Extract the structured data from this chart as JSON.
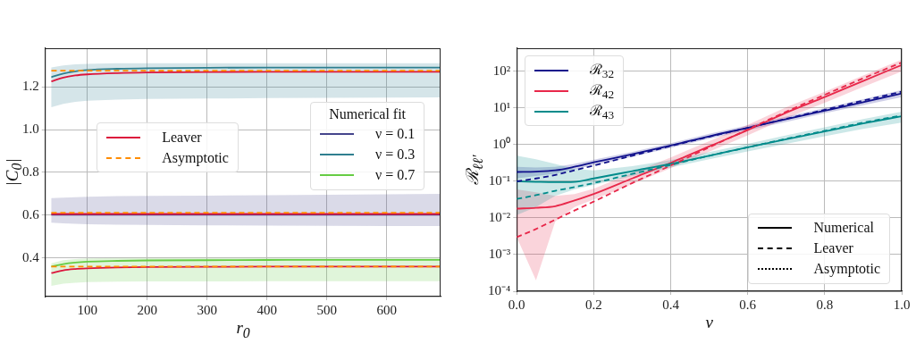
{
  "chart_data": [
    {
      "type": "line",
      "xlabel": "r$_{0}$",
      "ylabel": "|C$_{0}$|",
      "legend_title": "Numerical fit",
      "legend": "right",
      "grid": true,
      "x": [
        40,
        60,
        80,
        100,
        150,
        200,
        300,
        400,
        500,
        600,
        690
      ],
      "xlim": [
        30,
        690
      ],
      "xticks": [
        100,
        200,
        300,
        400,
        500,
        600
      ],
      "ylim": [
        0.22,
        1.38
      ],
      "yticks": [
        0.4,
        0.6,
        0.8,
        {
          "value": 1,
          "label": "1.0"
        },
        1.2
      ],
      "series": [
        {
          "name": "ν = 0.1",
          "color": "#45458c",
          "line_style": "solid",
          "values": [
            0.602,
            0.602,
            0.602,
            0.602,
            0.602,
            0.602,
            0.602,
            0.602,
            0.602,
            0.602,
            0.602
          ],
          "lower": [
            0.565,
            0.562,
            0.56,
            0.558,
            0.556,
            0.555,
            0.553,
            0.552,
            0.551,
            0.55,
            0.55
          ],
          "upper": [
            0.68,
            0.682,
            0.684,
            0.686,
            0.689,
            0.69,
            0.692,
            0.694,
            0.696,
            0.698,
            0.7
          ]
        },
        {
          "name": "ν = 0.3",
          "color": "#2f7f8f",
          "line_style": "solid",
          "values": [
            1.245,
            1.262,
            1.272,
            1.278,
            1.284,
            1.287,
            1.289,
            1.29,
            1.29,
            1.29,
            1.29
          ],
          "lower": [
            1.105,
            1.12,
            1.13,
            1.135,
            1.14,
            1.143,
            1.145,
            1.147,
            1.148,
            1.149,
            1.15
          ],
          "upper": [
            1.29,
            1.3,
            1.305,
            1.307,
            1.31,
            1.31,
            1.31,
            1.31,
            1.31,
            1.31,
            1.31
          ]
        },
        {
          "name": "ν = 0.7",
          "color": "#66cc44",
          "line_style": "solid",
          "values": [
            0.36,
            0.372,
            0.379,
            0.383,
            0.387,
            0.389,
            0.39,
            0.391,
            0.392,
            0.392,
            0.392
          ],
          "lower": [
            0.27,
            0.28,
            0.285,
            0.288,
            0.29,
            0.291,
            0.291,
            0.292,
            0.292,
            0.292,
            0.292
          ],
          "upper": [
            0.375,
            0.39,
            0.395,
            0.398,
            0.4,
            0.4,
            0.4,
            0.4,
            0.4,
            0.4,
            0.4
          ]
        },
        {
          "name": "Leaver",
          "color": "#dc143c",
          "line_style": "solid",
          "values": [
            1.225,
            1.243,
            1.253,
            1.258,
            1.264,
            1.267,
            1.269,
            1.27,
            1.27,
            1.27,
            1.27
          ]
        },
        {
          "color": "#dc143c",
          "line_style": "solid",
          "values": [
            0.606,
            0.606,
            0.606,
            0.606,
            0.606,
            0.606,
            0.606,
            0.606,
            0.606,
            0.606,
            0.606
          ]
        },
        {
          "color": "#dc143c",
          "line_style": "solid",
          "values": [
            0.33,
            0.343,
            0.349,
            0.352,
            0.356,
            0.358,
            0.359,
            0.36,
            0.36,
            0.36,
            0.36
          ]
        },
        {
          "name": "Asymptotic",
          "color": "#ff8c00",
          "line_style": "dashed",
          "values": [
            1.275,
            1.275,
            1.275,
            1.275,
            1.275,
            1.275,
            1.275,
            1.275,
            1.275,
            1.275,
            1.275
          ]
        },
        {
          "color": "#ff8c00",
          "line_style": "dashed",
          "values": [
            0.612,
            0.612,
            0.612,
            0.612,
            0.612,
            0.612,
            0.612,
            0.612,
            0.612,
            0.612,
            0.612
          ]
        },
        {
          "color": "#ff8c00",
          "line_style": "dashed",
          "values": [
            0.36,
            0.36,
            0.36,
            0.36,
            0.36,
            0.36,
            0.36,
            0.36,
            0.36,
            0.36,
            0.36
          ]
        }
      ]
    },
    {
      "type": "line",
      "xlabel": "ν",
      "ylabel": "ℛ$_{ℓℓ′}$",
      "legend": "top left",
      "grid": true,
      "log": "y",
      "x": [
        0,
        0.05,
        0.1,
        0.15,
        0.2,
        0.3,
        0.4,
        0.5,
        0.6,
        0.7,
        0.8,
        0.9,
        1.0
      ],
      "xlim": [
        0,
        1
      ],
      "xticks": [
        {
          "value": 0,
          "label": "0.0"
        },
        0.2,
        0.4,
        0.6,
        0.8,
        {
          "value": 1,
          "label": "1.0"
        }
      ],
      "ylim": [
        0.0001,
        430
      ],
      "yticks": [
        {
          "value": 0.0001,
          "label": "10⁻⁴"
        },
        {
          "value": 0.001,
          "label": "10⁻³"
        },
        {
          "value": 0.01,
          "label": "10⁻²"
        },
        {
          "value": 0.1,
          "label": "10⁻¹"
        },
        {
          "value": 1,
          "label": "10⁰"
        },
        {
          "value": 10,
          "label": "10¹"
        },
        {
          "value": 100,
          "label": "10²"
        }
      ],
      "annotations": [
        "Numerical",
        "Leaver",
        "Asymptotic"
      ],
      "series": [
        {
          "name": "ℛ$_{32}$",
          "color": "#10108c",
          "line_style": "solid",
          "values": [
            0.18,
            0.185,
            0.2,
            0.25,
            0.33,
            0.55,
            0.95,
            1.7,
            2.9,
            5,
            8.5,
            14.5,
            25
          ],
          "lower": [
            0.12,
            0.14,
            0.16,
            0.21,
            0.28,
            0.47,
            0.82,
            1.45,
            2.5,
            4.2,
            7.2,
            12,
            20
          ],
          "upper": [
            0.25,
            0.24,
            0.25,
            0.3,
            0.39,
            0.64,
            1.1,
            2,
            3.4,
            5.9,
            10,
            17.5,
            31
          ]
        },
        {
          "name": "ℛ$_{42}$",
          "color": "#e8284a",
          "line_style": "solid",
          "values": [
            0.018,
            0.019,
            0.021,
            0.03,
            0.045,
            0.12,
            0.32,
            0.9,
            2.5,
            7.5,
            20,
            55,
            150
          ],
          "lower": [
            0.003,
            0.0002,
            0.008,
            0.02,
            0.032,
            0.085,
            0.23,
            0.65,
            1.8,
            5.3,
            14,
            38,
            100
          ],
          "upper": [
            0.06,
            0.05,
            0.04,
            0.045,
            0.063,
            0.17,
            0.45,
            1.25,
            3.5,
            10.5,
            28,
            78,
            210
          ]
        },
        {
          "name": "ℛ$_{43}$",
          "color": "#008b8b",
          "line_style": "solid",
          "values": [
            0.1,
            0.097,
            0.095,
            0.097,
            0.12,
            0.19,
            0.3,
            0.5,
            0.85,
            1.4,
            2.3,
            3.8,
            6
          ],
          "lower": [
            0.012,
            0.02,
            0.04,
            0.06,
            0.08,
            0.14,
            0.24,
            0.4,
            0.66,
            1.05,
            1.7,
            2.7,
            4
          ],
          "upper": [
            0.5,
            0.4,
            0.3,
            0.22,
            0.2,
            0.26,
            0.38,
            0.63,
            1.05,
            1.8,
            3,
            5,
            8
          ]
        },
        {
          "color": "#10108c",
          "line_style": "dashed",
          "values": [
            0.1,
            0.12,
            0.15,
            0.2,
            0.27,
            0.5,
            0.92,
            1.65,
            2.9,
            5.1,
            9,
            16,
            28
          ]
        },
        {
          "color": "#e8284a",
          "line_style": "dashed",
          "values": [
            0.003,
            0.005,
            0.009,
            0.016,
            0.028,
            0.09,
            0.27,
            0.85,
            2.6,
            8,
            23,
            65,
            175
          ]
        },
        {
          "color": "#008b8b",
          "line_style": "dashed",
          "values": [
            0.033,
            0.042,
            0.055,
            0.07,
            0.09,
            0.16,
            0.28,
            0.5,
            0.85,
            1.45,
            2.4,
            4,
            6.3
          ]
        }
      ]
    }
  ]
}
